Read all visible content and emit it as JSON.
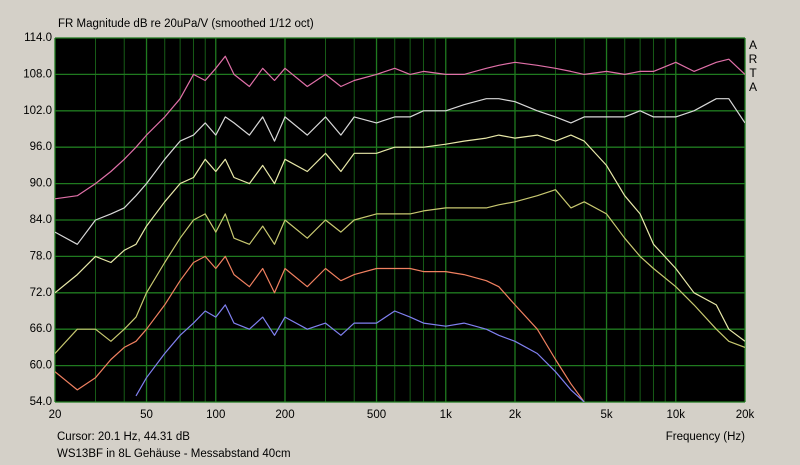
{
  "chart_data": {
    "type": "line",
    "title": "FR Magnitude dB re 20uPa/V (smoothed 1/12 oct)",
    "brand": "ARTA",
    "cursor": "Cursor: 20.1 Hz, 44.31 dB",
    "caption": "WS13BF in 8L Gehäuse - Messabstand 40cm",
    "x_label": "Frequency (Hz)",
    "log_x": true,
    "grid": true,
    "background": "#000000",
    "grid_color": "#1f7a1f",
    "xlim": [
      20,
      20000
    ],
    "ylim": [
      54,
      114
    ],
    "xticks": [
      20,
      50,
      100,
      200,
      500,
      {
        "value": 1000,
        "label": "1k"
      },
      {
        "value": 2000,
        "label": "2k"
      },
      {
        "value": 5000,
        "label": "5k"
      },
      {
        "value": 10000,
        "label": "10k"
      },
      {
        "value": 20000,
        "label": "20k"
      }
    ],
    "x_minor_ticks": [
      30,
      40,
      60,
      70,
      80,
      90,
      300,
      400,
      600,
      700,
      800,
      900,
      3000,
      4000,
      6000,
      7000,
      8000,
      9000
    ],
    "yticks": [
      {
        "value": 54,
        "label": "54.0"
      },
      {
        "value": 60,
        "label": "60.0"
      },
      {
        "value": 66,
        "label": "66.0"
      },
      {
        "value": 72,
        "label": "72.0"
      },
      {
        "value": 78,
        "label": "78.0"
      },
      {
        "value": 84,
        "label": "84.0"
      },
      {
        "value": 90,
        "label": "90.0"
      },
      {
        "value": 96,
        "label": "96.0"
      },
      {
        "value": 102,
        "label": "102.0"
      },
      {
        "value": 108,
        "label": "108.0"
      },
      {
        "value": 114,
        "label": "114.0"
      }
    ],
    "x": [
      20,
      25,
      30,
      35,
      40,
      45,
      50,
      60,
      70,
      80,
      90,
      100,
      110,
      120,
      140,
      160,
      180,
      200,
      250,
      300,
      350,
      400,
      500,
      600,
      700,
      800,
      1000,
      1200,
      1500,
      1700,
      2000,
      2500,
      3000,
      3500,
      4000,
      5000,
      6000,
      7000,
      8000,
      10000,
      12000,
      15000,
      17000,
      20000
    ],
    "series": [
      {
        "color": "#e070a8",
        "values": [
          87.5,
          88,
          90,
          92,
          94,
          96,
          98,
          101,
          104,
          108,
          107,
          109,
          111,
          108,
          106,
          109,
          107,
          109,
          106,
          108,
          106,
          107,
          108,
          109,
          108,
          108.5,
          108,
          108,
          109,
          109.5,
          110,
          109.5,
          109,
          108.5,
          108,
          108.5,
          108,
          108.5,
          108.5,
          110,
          108.5,
          110,
          110.5,
          108
        ]
      },
      {
        "color": "#d8d8d8",
        "values": [
          82,
          80,
          84,
          85,
          86,
          88,
          90,
          94,
          97,
          98,
          100,
          98,
          101,
          100,
          98,
          101,
          97,
          101,
          98,
          101,
          98,
          101,
          100,
          101,
          101,
          102,
          102,
          103,
          104,
          104,
          103.5,
          102,
          101,
          100,
          101,
          101,
          101,
          102,
          101,
          101,
          102,
          104,
          104,
          100
        ]
      },
      {
        "color": "#e8e8a8",
        "values": [
          72,
          75,
          78,
          77,
          79,
          80,
          83,
          87,
          90,
          91,
          94,
          92,
          94,
          91,
          90,
          93,
          90,
          94,
          92,
          95,
          92,
          95,
          95,
          96,
          96,
          96,
          96.5,
          97,
          97.5,
          98,
          97.5,
          98,
          97,
          98,
          97,
          93,
          88,
          85,
          80,
          76,
          72,
          70,
          66,
          64
        ]
      },
      {
        "color": "#c8c870",
        "values": [
          62,
          66,
          66,
          64,
          66,
          68,
          72,
          77,
          81,
          84,
          85,
          82,
          85,
          81,
          80,
          83,
          80,
          84,
          81,
          84,
          82,
          84,
          85,
          85,
          85,
          85.5,
          86,
          86,
          86,
          86.5,
          87,
          88,
          89,
          86,
          87,
          85,
          81,
          78,
          76,
          73,
          70,
          66,
          64,
          63
        ]
      },
      {
        "color": "#f08060",
        "values": [
          59,
          56,
          58,
          61,
          63,
          64,
          66,
          70,
          74,
          77,
          78,
          76,
          78,
          75,
          73,
          76,
          72,
          76,
          73,
          76,
          74,
          75,
          76,
          76,
          76,
          75.5,
          75.5,
          75,
          74,
          73,
          70,
          66,
          61,
          57,
          54,
          null,
          null,
          null,
          null,
          null,
          null,
          null,
          null,
          null
        ]
      },
      {
        "color": "#8080f0",
        "values": [
          null,
          null,
          null,
          null,
          null,
          55,
          58,
          62,
          65,
          67,
          69,
          68,
          70,
          67,
          66,
          68,
          65,
          68,
          66,
          67,
          65,
          67,
          67,
          69,
          68,
          67,
          66.5,
          67,
          66,
          65,
          64,
          62,
          59,
          56,
          54,
          null,
          null,
          null,
          null,
          null,
          null,
          null,
          null,
          null
        ]
      }
    ]
  }
}
